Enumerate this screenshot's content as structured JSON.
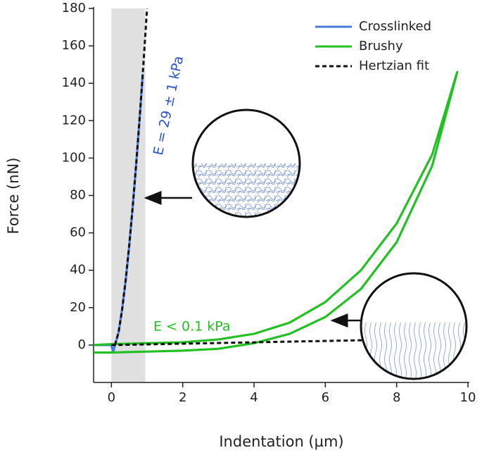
{
  "chart_data": {
    "type": "line",
    "xlabel": "Indentation (µm)",
    "ylabel": "Force (nN)",
    "xlim": [
      -0.5,
      10
    ],
    "ylim": [
      -20,
      180
    ],
    "xticks": [
      0,
      2,
      4,
      6,
      8,
      10
    ],
    "yticks": [
      0,
      20,
      40,
      60,
      80,
      100,
      120,
      140,
      160,
      180
    ],
    "shaded_region": {
      "x": [
        0,
        0.95
      ],
      "color": "#e0e0e0"
    },
    "legend": "upper right",
    "series": [
      {
        "name": "Crosslinked",
        "color": "#4a7be0",
        "dash": false,
        "x": [
          -0.5,
          0,
          0.05,
          0.1,
          0.2,
          0.3,
          0.4,
          0.5,
          0.6,
          0.7,
          0.8,
          0.88
        ],
        "values": [
          0,
          0,
          -4,
          0,
          6.7,
          18.9,
          34.6,
          53.3,
          74.5,
          98,
          123.5,
          145
        ]
      },
      {
        "name": "Brushy",
        "color": "#22c022",
        "dash": false,
        "x": [
          -0.5,
          0,
          1,
          2,
          3,
          4,
          5,
          6,
          7,
          8,
          9,
          9.7,
          9,
          8,
          7,
          6,
          5,
          4,
          3,
          2,
          1,
          0,
          -0.5
        ],
        "values": [
          0,
          0.5,
          1,
          1.5,
          3,
          6,
          12,
          23,
          40,
          65,
          102,
          146,
          96,
          55,
          30,
          15,
          6,
          1,
          -2,
          -3,
          -3.5,
          -4,
          -4
        ]
      },
      {
        "name": "Hertzian fit",
        "color": "#111111",
        "dash": true,
        "x": [
          0.1,
          0.2,
          0.3,
          0.4,
          0.5,
          0.6,
          0.7,
          0.8,
          0.9,
          1.0,
          0.5,
          0,
          7.1
        ],
        "values": [
          0,
          6.7,
          18.9,
          34.6,
          53.3,
          74.5,
          98,
          123.5,
          150.8,
          180,
          null,
          0,
          2.6
        ]
      }
    ],
    "annotations": [
      {
        "text": "E = 29 ± 1 kPa",
        "color": "#2a55d0"
      },
      {
        "text": "E < 0.1 kPa",
        "color": "#22c022"
      }
    ]
  }
}
